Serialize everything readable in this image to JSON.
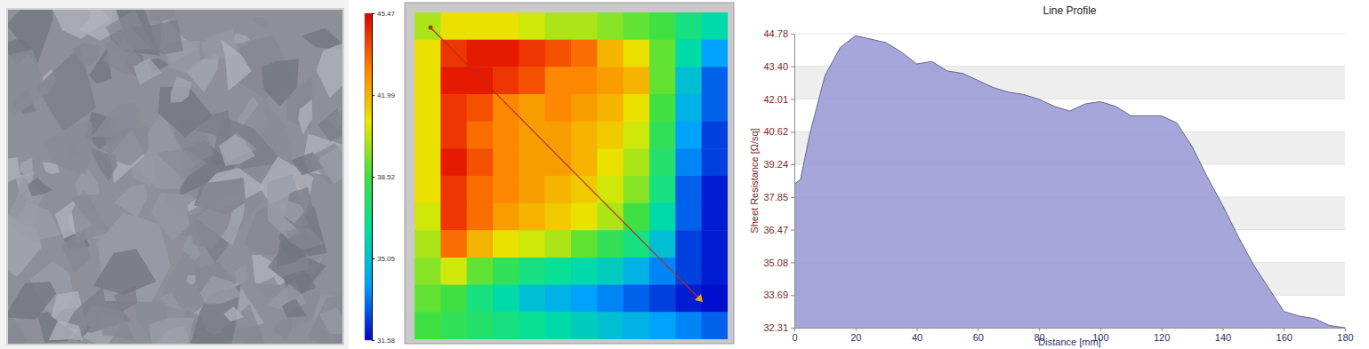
{
  "chart_data": [
    {
      "type": "heatmap",
      "cells": [
        [
          40,
          41,
          41,
          41,
          40.5,
          40,
          40,
          39.5,
          39,
          38.5,
          37,
          36
        ],
        [
          41,
          44.5,
          45,
          45,
          44.5,
          44,
          43.5,
          42,
          41,
          39,
          36,
          34
        ],
        [
          41,
          45,
          45,
          44.5,
          44,
          43,
          43,
          42.5,
          42,
          39,
          35,
          33
        ],
        [
          41,
          44.5,
          44,
          43,
          42.5,
          43,
          42.5,
          42,
          41,
          38.5,
          34.5,
          33
        ],
        [
          41,
          44.5,
          43.5,
          43,
          42.5,
          42.5,
          42,
          41.5,
          40.5,
          38,
          34,
          32.5
        ],
        [
          41,
          45,
          44,
          43,
          42.5,
          42.5,
          42,
          41,
          40,
          37.5,
          33.5,
          32.5
        ],
        [
          41,
          44.5,
          43.5,
          43,
          42.5,
          42,
          41.5,
          40.5,
          39.5,
          37,
          33,
          32
        ],
        [
          40.5,
          44.5,
          43.5,
          42.5,
          42,
          41.5,
          41,
          40,
          38.5,
          36,
          33,
          32
        ],
        [
          40,
          43.5,
          42,
          41,
          40.5,
          40,
          39,
          38,
          37,
          35,
          32.5,
          32
        ],
        [
          39.5,
          40.5,
          39,
          38,
          37,
          36.5,
          36,
          35.5,
          34.5,
          33.5,
          32.5,
          32
        ],
        [
          39,
          38.5,
          37,
          36,
          35,
          34.5,
          34,
          33.5,
          33,
          32.5,
          32,
          31.8
        ],
        [
          38.5,
          38,
          37.5,
          37,
          36.5,
          36,
          35.5,
          35,
          34.5,
          34,
          33.5,
          33
        ]
      ],
      "colorbar": {
        "range": [
          31.58,
          45.47
        ],
        "ticks": [
          45.47,
          41.99,
          38.52,
          35.05,
          31.58
        ]
      }
    },
    {
      "type": "area",
      "title": "Line Profile",
      "xlabel": "Distance [mm]",
      "ylabel": "Sheet Resistance [Ω/sq]",
      "color": "#9c9cd6",
      "grid": true,
      "x": [
        0,
        2,
        5,
        10,
        15,
        20,
        25,
        30,
        35,
        40,
        45,
        50,
        55,
        60,
        65,
        70,
        75,
        80,
        85,
        90,
        95,
        100,
        105,
        110,
        115,
        120,
        125,
        130,
        135,
        140,
        145,
        150,
        155,
        160,
        165,
        170,
        175,
        180
      ],
      "values": [
        38.4,
        38.6,
        40.5,
        43.0,
        44.2,
        44.7,
        44.55,
        44.4,
        44.0,
        43.5,
        43.6,
        43.2,
        43.1,
        42.8,
        42.5,
        42.3,
        42.2,
        42.0,
        41.7,
        41.5,
        41.8,
        41.9,
        41.7,
        41.3,
        41.3,
        41.3,
        41.0,
        40.0,
        38.7,
        37.5,
        36.2,
        35.0,
        34.0,
        33.0,
        32.8,
        32.7,
        32.4,
        32.31
      ],
      "xlim": [
        0,
        180
      ],
      "ylim": [
        32.31,
        44.78
      ],
      "xticks": [
        0,
        20,
        40,
        60,
        80,
        100,
        120,
        140,
        160,
        180
      ],
      "yticks": [
        32.31,
        33.69,
        35.08,
        36.47,
        37.85,
        39.24,
        40.62,
        42.01,
        {
          "value": 43.4,
          "label": "43.40"
        },
        44.78
      ]
    }
  ]
}
